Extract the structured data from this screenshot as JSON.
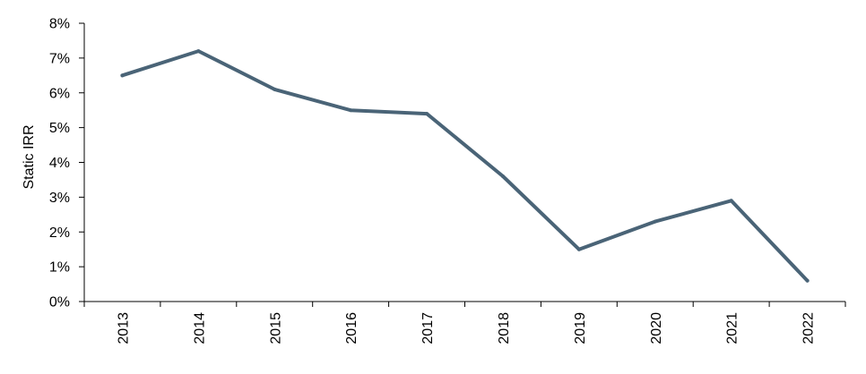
{
  "chart_data": {
    "type": "line",
    "title": "",
    "xlabel": "",
    "ylabel": "Static IRR",
    "categories": [
      "2013",
      "2014",
      "2015",
      "2016",
      "2017",
      "2018",
      "2019",
      "2020",
      "2021",
      "2022"
    ],
    "series": [
      {
        "values": [
          6.5,
          7.2,
          6.1,
          5.5,
          5.4,
          3.6,
          1.5,
          2.3,
          2.9,
          0.6
        ],
        "color": "#4A6477"
      }
    ],
    "ylim": [
      0,
      8
    ],
    "yticks": [
      0,
      1,
      2,
      3,
      4,
      5,
      6,
      7,
      8
    ],
    "ytick_labels": [
      "0%",
      "1%",
      "2%",
      "3%",
      "4%",
      "5%",
      "6%",
      "7%",
      "8%"
    ],
    "grid": false,
    "legend": "none"
  }
}
